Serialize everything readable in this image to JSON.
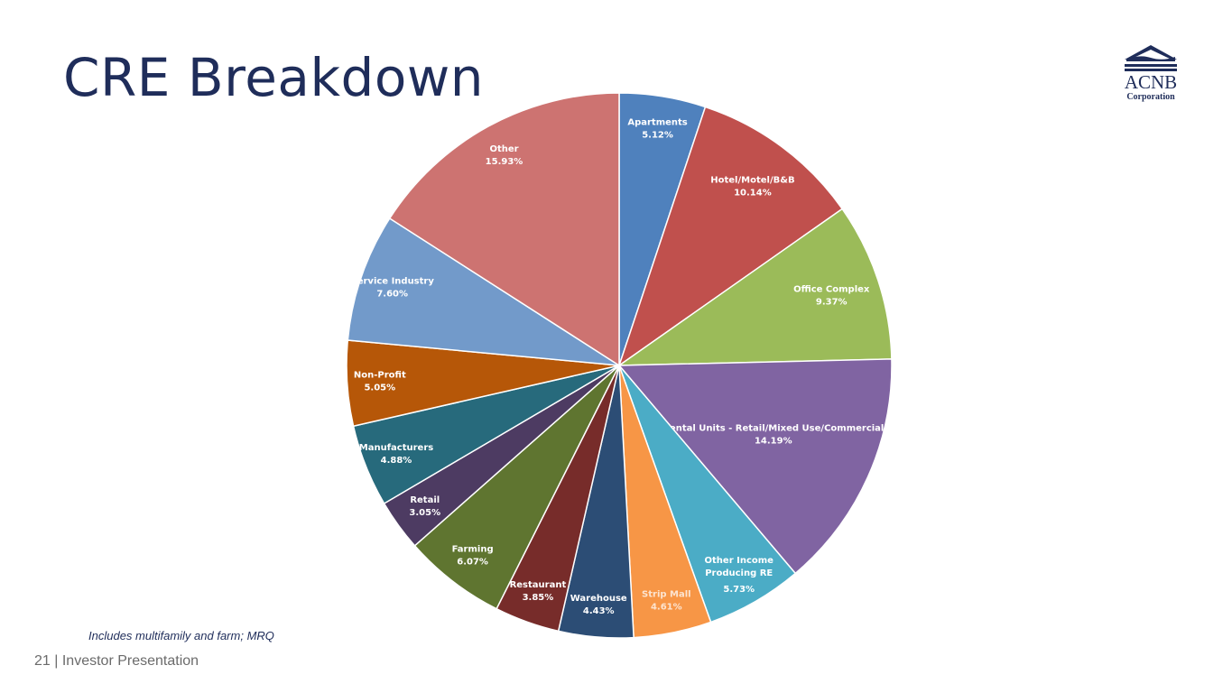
{
  "slide": {
    "title": "CRE Breakdown",
    "note": "Includes multifamily and farm; MRQ",
    "page_number": "21",
    "footer_text": "| Investor Presentation",
    "logo": {
      "name": "ACNB",
      "sub": "Corporation"
    }
  },
  "chart_data": {
    "type": "pie",
    "title": "CRE Breakdown",
    "unit": "%",
    "start": "12 o'clock, clockwise",
    "slices": [
      {
        "label": "Apartments",
        "value": 5.12,
        "display": "5.12%",
        "color": "#4F81BD"
      },
      {
        "label": "Hotel/Motel/B&B",
        "value": 10.14,
        "display": "10.14%",
        "color": "#C0504D"
      },
      {
        "label": "Office Complex",
        "value": 9.37,
        "display": "9.37%",
        "color": "#9BBB59"
      },
      {
        "label": "Rental Units - Retail/Mixed Use/Commercial",
        "value": 14.19,
        "display": "14.19%",
        "color": "#8064A2"
      },
      {
        "label": "Other Income Producing RE",
        "value": 5.73,
        "display": "5.73%",
        "color": "#4BACC6"
      },
      {
        "label": "Strip Mall",
        "value": 4.61,
        "display": "4.61%",
        "color": "#F79646"
      },
      {
        "label": "Warehouse",
        "value": 4.43,
        "display": "4.43%",
        "color": "#2C4D75"
      },
      {
        "label": "Restaurant",
        "value": 3.85,
        "display": "3.85%",
        "color": "#772C2A"
      },
      {
        "label": "Farming",
        "value": 6.07,
        "display": "6.07%",
        "color": "#5F7530"
      },
      {
        "label": "Retail",
        "value": 3.05,
        "display": "3.05%",
        "color": "#4D3B62"
      },
      {
        "label": "Manufacturers",
        "value": 4.88,
        "display": "4.88%",
        "color": "#276A7C"
      },
      {
        "label": "Non-Profit",
        "value": 5.05,
        "display": "5.05%",
        "color": "#B65708"
      },
      {
        "label": "Service Industry",
        "value": 7.6,
        "display": "7.60%",
        "color": "#729ACA"
      },
      {
        "label": "Other",
        "value": 15.93,
        "display": "15.93%",
        "color": "#CD7371"
      }
    ]
  }
}
